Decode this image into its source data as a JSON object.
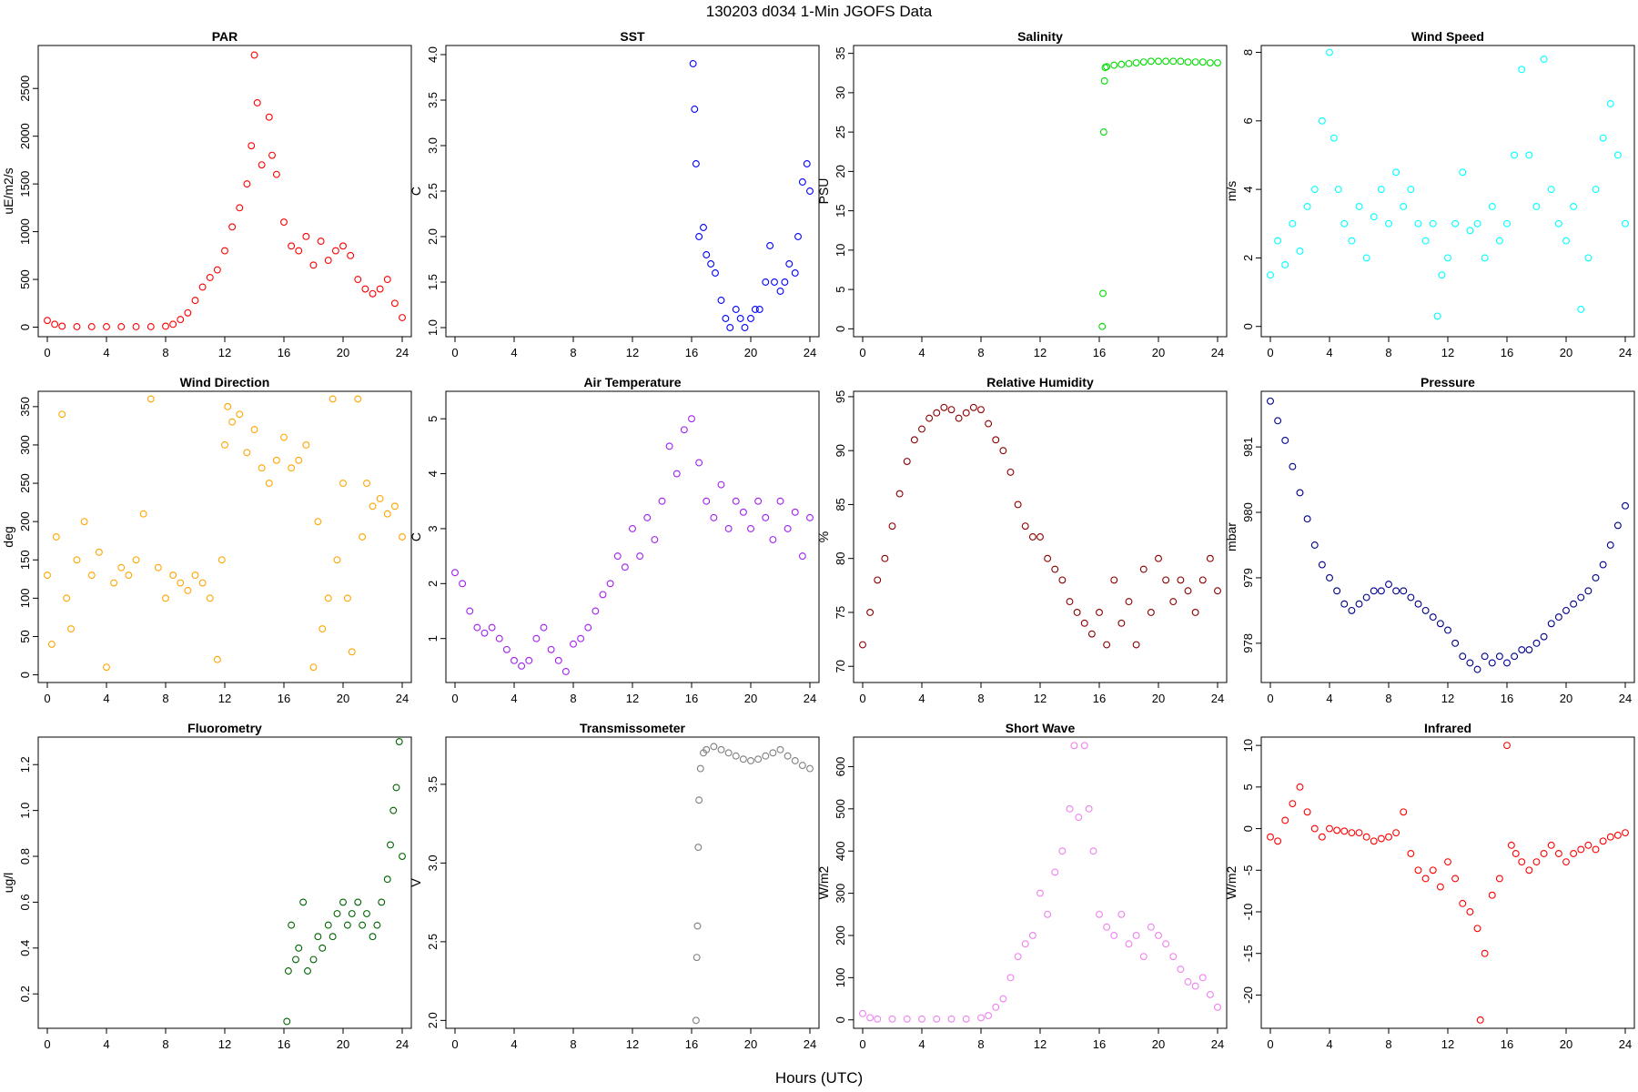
{
  "figure": {
    "title": "130203   d034   1-Min  JGOFS Data",
    "xlabel": "Hours (UTC)"
  },
  "chart_data": [
    {
      "type": "scatter",
      "title": "PAR",
      "ylabel": "uE/m2/s",
      "color": "#ff0000",
      "xlim": [
        0,
        24
      ],
      "xticks": [
        0,
        4,
        8,
        12,
        16,
        20,
        24
      ],
      "ylim": [
        -100,
        2950
      ],
      "yticks": [
        0,
        500,
        1000,
        1500,
        2000,
        2500
      ],
      "x": [
        0,
        0.5,
        1,
        2,
        3,
        4,
        5,
        6,
        7,
        8,
        8.5,
        9,
        9.5,
        10,
        10.5,
        11,
        11.5,
        12,
        12.5,
        13,
        13.5,
        13.8,
        14,
        14.2,
        14.5,
        15,
        15.2,
        15.5,
        16,
        16.5,
        17,
        17.5,
        18,
        18.5,
        19,
        19.5,
        20,
        20.5,
        21,
        21.5,
        22,
        22.5,
        23,
        23.5,
        24
      ],
      "y": [
        70,
        30,
        10,
        5,
        5,
        5,
        5,
        5,
        5,
        10,
        30,
        80,
        150,
        280,
        420,
        520,
        600,
        800,
        1050,
        1250,
        1500,
        1900,
        2850,
        2350,
        1700,
        2200,
        1800,
        1600,
        1100,
        850,
        800,
        950,
        650,
        900,
        700,
        800,
        850,
        750,
        500,
        400,
        350,
        400,
        500,
        250,
        100
      ]
    },
    {
      "type": "scatter",
      "title": "SST",
      "ylabel": "C",
      "color": "#0000ff",
      "xlim": [
        0,
        24
      ],
      "xticks": [
        0,
        4,
        8,
        12,
        16,
        20,
        24
      ],
      "ylim": [
        0.9,
        4.1
      ],
      "yticks": [
        1.0,
        1.5,
        2.0,
        2.5,
        3.0,
        3.5,
        4.0
      ],
      "x": [
        16.1,
        16.2,
        16.3,
        16.5,
        16.8,
        17,
        17.3,
        17.6,
        18,
        18.3,
        18.6,
        19,
        19.3,
        19.6,
        20,
        20.3,
        20.6,
        21,
        21.3,
        21.6,
        22,
        22.3,
        22.6,
        23,
        23.2,
        23.5,
        23.8,
        24
      ],
      "y": [
        3.9,
        3.4,
        2.8,
        2.0,
        2.1,
        1.8,
        1.7,
        1.6,
        1.3,
        1.1,
        1.0,
        1.2,
        1.1,
        1.0,
        1.1,
        1.2,
        1.2,
        1.5,
        1.9,
        1.5,
        1.4,
        1.5,
        1.7,
        1.6,
        2.0,
        2.6,
        2.8,
        2.5
      ]
    },
    {
      "type": "scatter",
      "title": "Salinity",
      "ylabel": "PSU",
      "color": "#00dd00",
      "xlim": [
        0,
        24
      ],
      "xticks": [
        0,
        4,
        8,
        12,
        16,
        20,
        24
      ],
      "ylim": [
        -1,
        36
      ],
      "yticks": [
        0,
        5,
        10,
        15,
        20,
        25,
        30,
        35
      ],
      "x": [
        16.2,
        16.25,
        16.3,
        16.35,
        16.4,
        16.5,
        17,
        17.5,
        18,
        18.5,
        19,
        19.5,
        20,
        20.5,
        21,
        21.5,
        22,
        22.5,
        23,
        23.5,
        24
      ],
      "y": [
        0.3,
        4.5,
        25,
        31.5,
        33.2,
        33.3,
        33.5,
        33.6,
        33.7,
        33.8,
        33.9,
        34.0,
        34.0,
        34.0,
        34.0,
        34.0,
        33.9,
        33.9,
        33.9,
        33.8,
        33.8
      ]
    },
    {
      "type": "scatter",
      "title": "Wind Speed",
      "ylabel": "m/s",
      "color": "#00ffff",
      "xlim": [
        0,
        24
      ],
      "xticks": [
        0,
        4,
        8,
        12,
        16,
        20,
        24
      ],
      "ylim": [
        -0.3,
        8.2
      ],
      "yticks": [
        0,
        2,
        4,
        6,
        8
      ],
      "x": [
        0,
        0.5,
        1,
        1.5,
        2,
        2.5,
        3,
        3.5,
        4,
        4.3,
        4.6,
        5,
        5.5,
        6,
        6.5,
        7,
        7.5,
        8,
        8.5,
        9,
        9.5,
        10,
        10.5,
        11,
        11.3,
        11.6,
        12,
        12.5,
        13,
        13.5,
        14,
        14.5,
        15,
        15.5,
        16,
        16.5,
        17,
        17.5,
        18,
        18.5,
        19,
        19.5,
        20,
        20.5,
        21,
        21.5,
        22,
        22.5,
        23,
        23.5,
        24
      ],
      "y": [
        1.5,
        2.5,
        1.8,
        3.0,
        2.2,
        3.5,
        4.0,
        6.0,
        8.0,
        5.5,
        4.0,
        3.0,
        2.5,
        3.5,
        2.0,
        3.2,
        4.0,
        3.0,
        4.5,
        3.5,
        4.0,
        3.0,
        2.5,
        3.0,
        0.3,
        1.5,
        2.0,
        3.0,
        4.5,
        2.8,
        3.0,
        2.0,
        3.5,
        2.5,
        3.0,
        5.0,
        7.5,
        5.0,
        3.5,
        7.8,
        4.0,
        3.0,
        2.5,
        3.5,
        0.5,
        2.0,
        4.0,
        5.5,
        6.5,
        5.0,
        3.0
      ]
    },
    {
      "type": "scatter",
      "title": "Wind Direction",
      "ylabel": "deg",
      "color": "#ffa500",
      "xlim": [
        0,
        24
      ],
      "xticks": [
        0,
        4,
        8,
        12,
        16,
        20,
        24
      ],
      "ylim": [
        -10,
        370
      ],
      "yticks": [
        0,
        50,
        100,
        150,
        200,
        250,
        300,
        350
      ],
      "x": [
        0,
        0.3,
        0.6,
        1,
        1.3,
        1.6,
        2,
        2.5,
        3,
        3.5,
        4,
        4.5,
        5,
        5.5,
        6,
        6.5,
        7,
        7.5,
        8,
        8.5,
        9,
        9.5,
        10,
        10.5,
        11,
        11.5,
        11.8,
        12,
        12.2,
        12.5,
        13,
        13.5,
        14,
        14.5,
        15,
        15.5,
        16,
        16.5,
        17,
        17.5,
        18,
        18.3,
        18.6,
        19,
        19.3,
        19.6,
        20,
        20.3,
        20.6,
        21,
        21.3,
        21.6,
        22,
        22.5,
        23,
        23.5,
        24
      ],
      "y": [
        130,
        40,
        180,
        340,
        100,
        60,
        150,
        200,
        130,
        160,
        10,
        120,
        140,
        130,
        150,
        210,
        360,
        140,
        100,
        130,
        120,
        110,
        130,
        120,
        100,
        20,
        150,
        300,
        350,
        330,
        340,
        290,
        320,
        270,
        250,
        280,
        310,
        270,
        280,
        300,
        10,
        200,
        60,
        100,
        360,
        150,
        250,
        100,
        30,
        360,
        180,
        250,
        220,
        230,
        210,
        220,
        180
      ]
    },
    {
      "type": "scatter",
      "title": "Air Temperature",
      "ylabel": "C",
      "color": "#a020f0",
      "xlim": [
        0,
        24
      ],
      "xticks": [
        0,
        4,
        8,
        12,
        16,
        20,
        24
      ],
      "ylim": [
        0.2,
        5.5
      ],
      "yticks": [
        1,
        2,
        3,
        4,
        5
      ],
      "x": [
        0,
        0.5,
        1,
        1.5,
        2,
        2.5,
        3,
        3.5,
        4,
        4.5,
        5,
        5.5,
        6,
        6.5,
        7,
        7.5,
        8,
        8.5,
        9,
        9.5,
        10,
        10.5,
        11,
        11.5,
        12,
        12.5,
        13,
        13.5,
        14,
        14.5,
        15,
        15.5,
        16,
        16.5,
        17,
        17.5,
        18,
        18.5,
        19,
        19.5,
        20,
        20.5,
        21,
        21.5,
        22,
        22.5,
        23,
        23.5,
        24
      ],
      "y": [
        2.2,
        2.0,
        1.5,
        1.2,
        1.1,
        1.2,
        1.0,
        0.8,
        0.6,
        0.5,
        0.6,
        1.0,
        1.2,
        0.8,
        0.6,
        0.4,
        0.9,
        1.0,
        1.2,
        1.5,
        1.8,
        2.0,
        2.5,
        2.3,
        3.0,
        2.5,
        3.2,
        2.8,
        3.5,
        4.5,
        4.0,
        4.8,
        5.0,
        4.2,
        3.5,
        3.2,
        3.8,
        3.0,
        3.5,
        3.3,
        3.0,
        3.5,
        3.2,
        2.8,
        3.5,
        3.0,
        3.3,
        2.5,
        3.2
      ]
    },
    {
      "type": "scatter",
      "title": "Relative Humidity",
      "ylabel": "%",
      "color": "#8b0000",
      "xlim": [
        0,
        24
      ],
      "xticks": [
        0,
        4,
        8,
        12,
        16,
        20,
        24
      ],
      "ylim": [
        68.5,
        95.5
      ],
      "yticks": [
        70,
        75,
        80,
        85,
        90,
        95
      ],
      "x": [
        0,
        0.5,
        1,
        1.5,
        2,
        2.5,
        3,
        3.5,
        4,
        4.5,
        5,
        5.5,
        6,
        6.5,
        7,
        7.5,
        8,
        8.5,
        9,
        9.5,
        10,
        10.5,
        11,
        11.5,
        12,
        12.5,
        13,
        13.5,
        14,
        14.5,
        15,
        15.5,
        16,
        16.5,
        17,
        17.5,
        18,
        18.5,
        19,
        19.5,
        20,
        20.5,
        21,
        21.5,
        22,
        22.5,
        23,
        23.5,
        24
      ],
      "y": [
        72,
        75,
        78,
        80,
        83,
        86,
        89,
        91,
        92,
        93,
        93.5,
        94,
        93.8,
        93,
        93.5,
        94,
        93.8,
        92.5,
        91,
        90,
        88,
        85,
        83,
        82,
        82,
        80,
        79,
        78,
        76,
        75,
        74,
        73,
        75,
        72,
        78,
        74,
        76,
        72,
        79,
        75,
        80,
        78,
        76,
        78,
        77,
        75,
        78,
        80,
        77
      ]
    },
    {
      "type": "scatter",
      "title": "Pressure",
      "ylabel": "mbar",
      "color": "#00008b",
      "xlim": [
        0,
        24
      ],
      "xticks": [
        0,
        4,
        8,
        12,
        16,
        20,
        24
      ],
      "ylim": [
        977.4,
        981.85
      ],
      "yticks": [
        978,
        979,
        980,
        981
      ],
      "x": [
        0,
        0.5,
        1,
        1.5,
        2,
        2.5,
        3,
        3.5,
        4,
        4.5,
        5,
        5.5,
        6,
        6.5,
        7,
        7.5,
        8,
        8.5,
        9,
        9.5,
        10,
        10.5,
        11,
        11.5,
        12,
        12.5,
        13,
        13.5,
        14,
        14.5,
        15,
        15.5,
        16,
        16.5,
        17,
        17.5,
        18,
        18.5,
        19,
        19.5,
        20,
        20.5,
        21,
        21.5,
        22,
        22.5,
        23,
        23.5,
        24
      ],
      "y": [
        981.7,
        981.4,
        981.1,
        980.7,
        980.3,
        979.9,
        979.5,
        979.2,
        979.0,
        978.8,
        978.6,
        978.5,
        978.6,
        978.7,
        978.8,
        978.8,
        978.9,
        978.8,
        978.8,
        978.7,
        978.6,
        978.5,
        978.4,
        978.3,
        978.2,
        978.0,
        977.8,
        977.7,
        977.6,
        977.8,
        977.7,
        977.8,
        977.7,
        977.8,
        977.9,
        977.9,
        978.0,
        978.1,
        978.3,
        978.4,
        978.5,
        978.6,
        978.7,
        978.8,
        979.0,
        979.2,
        979.5,
        979.8,
        980.1
      ]
    },
    {
      "type": "scatter",
      "title": "Fluorometry",
      "ylabel": "ug/l",
      "color": "#006400",
      "xlim": [
        0,
        24
      ],
      "xticks": [
        0,
        4,
        8,
        12,
        16,
        20,
        24
      ],
      "ylim": [
        0.05,
        1.32
      ],
      "yticks": [
        0.2,
        0.4,
        0.6,
        0.8,
        1.0,
        1.2
      ],
      "x": [
        16.2,
        16.3,
        16.5,
        16.8,
        17,
        17.3,
        17.6,
        18,
        18.3,
        18.6,
        19,
        19.3,
        19.6,
        20,
        20.3,
        20.6,
        21,
        21.3,
        21.6,
        22,
        22.3,
        22.6,
        23,
        23.2,
        23.4,
        23.6,
        23.8,
        24
      ],
      "y": [
        0.08,
        0.3,
        0.5,
        0.35,
        0.4,
        0.6,
        0.3,
        0.35,
        0.45,
        0.4,
        0.5,
        0.45,
        0.55,
        0.6,
        0.5,
        0.55,
        0.6,
        0.5,
        0.55,
        0.45,
        0.5,
        0.6,
        0.7,
        0.85,
        1.0,
        1.1,
        1.3,
        0.8
      ]
    },
    {
      "type": "scatter",
      "title": "Transmissometer",
      "ylabel": "V",
      "color": "#808080",
      "xlim": [
        0,
        24
      ],
      "xticks": [
        0,
        4,
        8,
        12,
        16,
        20,
        24
      ],
      "ylim": [
        1.95,
        3.8
      ],
      "yticks": [
        2.0,
        2.5,
        3.0,
        3.5
      ],
      "x": [
        16.3,
        16.35,
        16.4,
        16.45,
        16.5,
        16.6,
        16.8,
        17,
        17.5,
        18,
        18.5,
        19,
        19.5,
        20,
        20.5,
        21,
        21.5,
        22,
        22.5,
        23,
        23.5,
        24
      ],
      "y": [
        2.0,
        2.4,
        2.6,
        3.1,
        3.4,
        3.6,
        3.7,
        3.72,
        3.74,
        3.72,
        3.7,
        3.68,
        3.66,
        3.65,
        3.66,
        3.68,
        3.7,
        3.72,
        3.68,
        3.65,
        3.62,
        3.6
      ]
    },
    {
      "type": "scatter",
      "title": "Short Wave",
      "ylabel": "W/m2",
      "color": "#ee82ee",
      "xlim": [
        0,
        24
      ],
      "xticks": [
        0,
        4,
        8,
        12,
        16,
        20,
        24
      ],
      "ylim": [
        -20,
        670
      ],
      "yticks": [
        0,
        100,
        200,
        300,
        400,
        500,
        600
      ],
      "x": [
        0,
        0.5,
        1,
        2,
        3,
        4,
        5,
        6,
        7,
        8,
        8.5,
        9,
        9.5,
        10,
        10.5,
        11,
        11.5,
        12,
        12.5,
        13,
        13.5,
        14,
        14.3,
        14.6,
        15,
        15.3,
        15.6,
        16,
        16.5,
        17,
        17.5,
        18,
        18.5,
        19,
        19.5,
        20,
        20.5,
        21,
        21.5,
        22,
        22.5,
        23,
        23.5,
        24
      ],
      "y": [
        15,
        5,
        2,
        2,
        2,
        2,
        2,
        2,
        2,
        5,
        10,
        30,
        50,
        100,
        150,
        180,
        200,
        300,
        250,
        350,
        400,
        500,
        650,
        480,
        650,
        500,
        400,
        250,
        220,
        200,
        250,
        180,
        200,
        150,
        220,
        200,
        180,
        150,
        120,
        90,
        80,
        100,
        60,
        30
      ]
    },
    {
      "type": "scatter",
      "title": "Infrared",
      "ylabel": "W/m2",
      "color": "#ff0000",
      "xlim": [
        0,
        24
      ],
      "xticks": [
        0,
        4,
        8,
        12,
        16,
        20,
        24
      ],
      "ylim": [
        -24,
        11
      ],
      "yticks": [
        -20,
        -15,
        -10,
        -5,
        0,
        5,
        10
      ],
      "x": [
        0,
        0.5,
        1,
        1.5,
        2,
        2.5,
        3,
        3.5,
        4,
        4.5,
        5,
        5.5,
        6,
        6.5,
        7,
        7.5,
        8,
        8.5,
        9,
        9.5,
        10,
        10.5,
        11,
        11.5,
        12,
        12.5,
        13,
        13.5,
        14,
        14.2,
        14.5,
        15,
        15.5,
        16,
        16.3,
        16.6,
        17,
        17.5,
        18,
        18.5,
        19,
        19.5,
        20,
        20.5,
        21,
        21.5,
        22,
        22.5,
        23,
        23.5,
        24
      ],
      "y": [
        -1,
        -1.5,
        1,
        3,
        5,
        2,
        0,
        -1,
        0,
        -0.2,
        -0.3,
        -0.5,
        -0.5,
        -1,
        -1.5,
        -1.2,
        -1,
        -0.5,
        2,
        -3,
        -5,
        -6,
        -5,
        -7,
        -4,
        -6,
        -9,
        -10,
        -12,
        -23,
        -15,
        -8,
        -6,
        10,
        -2,
        -3,
        -4,
        -5,
        -4,
        -3,
        -2,
        -3,
        -4,
        -3,
        -2.5,
        -2,
        -2.5,
        -1.5,
        -1,
        -0.8,
        -0.5
      ]
    }
  ]
}
